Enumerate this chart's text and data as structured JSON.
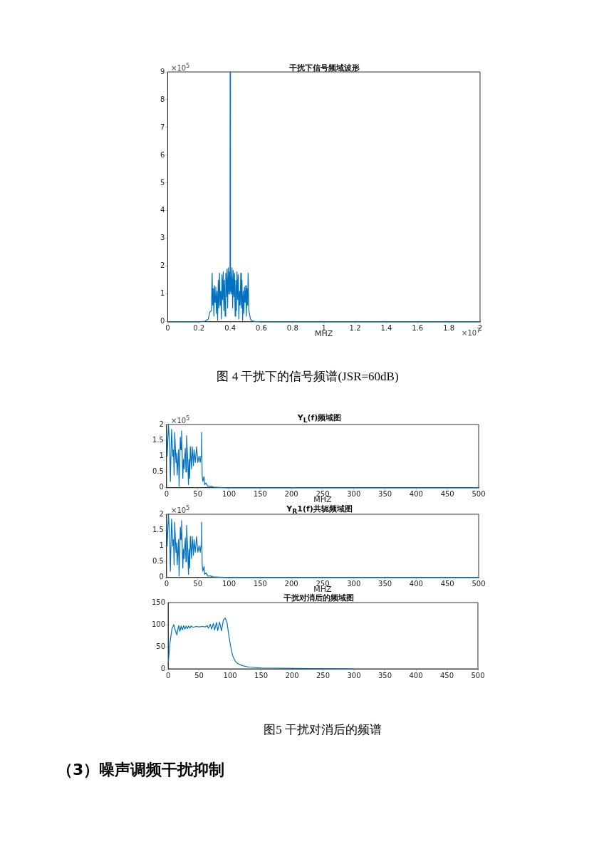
{
  "chart_data": [
    {
      "type": "line",
      "title": "干扰下信号频域波形",
      "xlabel": "MHZ",
      "grid": false,
      "line_style": "solid",
      "xlim": [
        0,
        2
      ],
      "xticks": [
        0,
        0.2,
        0.4,
        0.6,
        0.8,
        1,
        1.2,
        1.4,
        1.6,
        1.8,
        2
      ],
      "ylim": [
        0,
        9
      ],
      "yticks": [
        0,
        1,
        2,
        3,
        4,
        5,
        6,
        7,
        8,
        9
      ],
      "annotations": [
        "×10$^{5}$",
        "×10$^{7}$",
        "图 4  干扰下的信号频谱(JSR=60dB)"
      ],
      "series": [
        {
          "color": "#0072bd",
          "x": [
            0,
            0.2,
            0.24,
            0.26,
            0.27,
            0.28,
            0.285,
            0.288,
            0.292,
            0.296,
            0.3,
            0.304,
            0.308,
            0.312,
            0.316,
            0.32,
            0.324,
            0.328,
            0.332,
            0.336,
            0.34,
            0.344,
            0.348,
            0.352,
            0.356,
            0.36,
            0.364,
            0.368,
            0.372,
            0.376,
            0.38,
            0.384,
            0.388,
            0.392,
            0.396,
            0.399,
            0.4,
            0.401,
            0.404,
            0.408,
            0.412,
            0.416,
            0.42,
            0.424,
            0.428,
            0.432,
            0.436,
            0.44,
            0.444,
            0.448,
            0.452,
            0.456,
            0.46,
            0.464,
            0.468,
            0.472,
            0.476,
            0.48,
            0.484,
            0.488,
            0.492,
            0.496,
            0.5,
            0.504,
            0.508,
            0.512,
            0.515,
            0.52,
            0.53,
            0.54,
            0.56,
            0.6,
            2
          ],
          "values": [
            0,
            0,
            0.02,
            0.1,
            0.35,
            0.4,
            1.75,
            0.6,
            1.2,
            0.2,
            1.3,
            0.7,
            1.25,
            0.3,
            1.1,
            0.05,
            1.5,
            0.5,
            1.75,
            0.6,
            1.1,
            0.1,
            1.7,
            0.8,
            1.8,
            0.4,
            1.5,
            0.2,
            1.75,
            0.9,
            1.9,
            0.5,
            1.95,
            1,
            1.8,
            1,
            9,
            1.1,
            1.9,
            1,
            1.95,
            0.5,
            1.85,
            0.9,
            1.75,
            0.2,
            1.5,
            0.4,
            1.8,
            0.8,
            1.7,
            0.1,
            1.1,
            0.6,
            1.75,
            0.5,
            1.5,
            0.05,
            1.1,
            0.3,
            1.25,
            0.7,
            1.3,
            0.2,
            1.2,
            0.6,
            1.75,
            0.4,
            0.1,
            0.03,
            0.01,
            0,
            0
          ]
        }
      ]
    },
    {
      "type": "line",
      "title": "Y$_{L}$(f)频域图",
      "xlabel": "MHZ",
      "grid": false,
      "line_style": "solid",
      "xlim": [
        0,
        500
      ],
      "xticks": [
        0,
        50,
        100,
        150,
        200,
        250,
        300,
        350,
        400,
        450,
        500
      ],
      "ylim": [
        0,
        2
      ],
      "yticks": [
        0,
        0.5,
        1,
        1.5,
        2
      ],
      "annotations": [
        "×10$^{5}$"
      ],
      "series": [
        {
          "color": "#0072bd",
          "x": [
            0,
            1,
            3,
            5,
            6,
            8,
            10,
            11,
            12,
            13,
            15,
            16,
            17,
            19,
            20,
            22,
            23,
            24,
            26,
            27,
            28,
            30,
            31,
            32,
            34,
            35,
            36,
            37,
            38,
            40,
            41,
            43,
            44,
            46,
            48,
            50,
            52,
            54,
            55,
            56,
            57,
            58,
            60,
            61,
            63,
            66,
            70,
            75,
            85,
            100,
            150,
            500
          ],
          "values": [
            1.7,
            1,
            2,
            1.3,
            0.2,
            1.85,
            1,
            1.2,
            0.4,
            1.75,
            0.8,
            1.1,
            0.4,
            1.2,
            0.05,
            1.6,
            1.2,
            1.8,
            0.3,
            0.9,
            0.6,
            1.25,
            0.5,
            1.65,
            0.8,
            0.1,
            0.9,
            0.3,
            1.3,
            0.6,
            1.3,
            0.7,
            1.2,
            0.8,
            1.3,
            0.8,
            1,
            0.8,
            1,
            1.75,
            0.4,
            0.2,
            0.35,
            0.1,
            0.15,
            0.05,
            0.05,
            0.02,
            0.01,
            0,
            0,
            0
          ]
        }
      ]
    },
    {
      "type": "line",
      "title": "Y$_{R}$1(f)共轭频域图",
      "xlabel": "MHZ",
      "grid": false,
      "line_style": "solid",
      "xlim": [
        0,
        500
      ],
      "xticks": [
        0,
        50,
        100,
        150,
        200,
        250,
        300,
        350,
        400,
        450,
        500
      ],
      "ylim": [
        0,
        2
      ],
      "yticks": [
        0,
        0.5,
        1,
        1.5,
        2
      ],
      "annotations": [
        "×10$^{5}$"
      ],
      "series": [
        {
          "color": "#0072bd",
          "x": [
            0,
            1,
            3,
            5,
            6,
            8,
            10,
            11,
            12,
            13,
            15,
            16,
            17,
            19,
            20,
            22,
            23,
            24,
            26,
            27,
            28,
            30,
            31,
            32,
            34,
            35,
            36,
            37,
            38,
            40,
            41,
            43,
            44,
            46,
            48,
            50,
            52,
            54,
            55,
            56,
            57,
            58,
            60,
            61,
            63,
            66,
            70,
            75,
            85,
            100,
            150,
            500
          ],
          "values": [
            1.7,
            1,
            2,
            1.3,
            0.2,
            1.85,
            1,
            1.2,
            0.4,
            1.75,
            0.8,
            1.1,
            0.4,
            1.2,
            0.05,
            1.6,
            1.2,
            1.8,
            0.3,
            0.9,
            0.6,
            1.25,
            0.5,
            1.65,
            0.8,
            0.1,
            0.9,
            0.3,
            1.3,
            0.6,
            1.3,
            0.7,
            1.2,
            0.8,
            1.3,
            0.8,
            1,
            0.8,
            1,
            1.75,
            0.4,
            0.2,
            0.35,
            0.1,
            0.15,
            0.05,
            0.05,
            0.02,
            0.01,
            0,
            0,
            0
          ]
        }
      ]
    },
    {
      "type": "line",
      "title": "干扰对消后的频域图",
      "grid": false,
      "line_style": "solid",
      "xlim": [
        0,
        500
      ],
      "xticks": [
        0,
        50,
        100,
        150,
        200,
        250,
        300,
        350,
        400,
        450,
        500
      ],
      "ylim": [
        0,
        150
      ],
      "yticks": [
        0,
        50,
        100,
        150
      ],
      "annotations": [
        "图5  干扰对消后的频谱",
        "（3）噪声调频干扰抑制"
      ],
      "series": [
        {
          "color": "#0072bd",
          "x": [
            0,
            3,
            6,
            9,
            12,
            14,
            17,
            19,
            21,
            23,
            25,
            27,
            29,
            31,
            33,
            35,
            37,
            40,
            45,
            50,
            55,
            60,
            63,
            65,
            68,
            70,
            73,
            75,
            78,
            80,
            83,
            86,
            89,
            92,
            95,
            98,
            101,
            104,
            108,
            112,
            120,
            130,
            150,
            200,
            300
          ],
          "values": [
            10,
            60,
            90,
            100,
            85,
            77,
            98,
            85,
            97,
            88,
            98,
            90,
            97,
            91,
            97,
            92,
            97,
            94,
            96,
            95,
            96,
            95,
            98,
            92,
            101,
            90,
            103,
            88,
            105,
            87,
            106,
            86,
            110,
            115,
            105,
            75,
            50,
            30,
            18,
            12,
            7,
            4,
            2,
            1,
            0
          ]
        }
      ]
    }
  ]
}
